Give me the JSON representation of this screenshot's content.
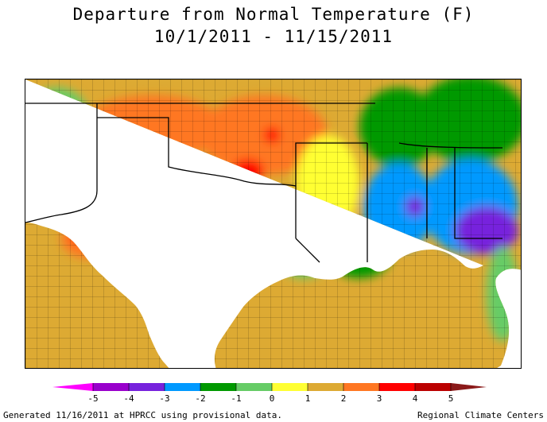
{
  "title_line1": "Departure from Normal Temperature (F)",
  "title_line2": "10/1/2011 - 11/15/2011",
  "legend": {
    "ticks": [
      "-5",
      "-4",
      "-3",
      "-2",
      "-1",
      "0",
      "1",
      "2",
      "3",
      "4",
      "5"
    ],
    "colors": [
      "#ff00ff",
      "#9900cc",
      "#7722dd",
      "#0099ff",
      "#009900",
      "#66cc66",
      "#ffff33",
      "#ddaa33",
      "#ff7722",
      "#ff0000",
      "#bb0000",
      "#8b1a1a"
    ]
  },
  "footer_left": "Generated 11/16/2011 at HPRCC using provisional data.",
  "footer_right": "Regional Climate Centers"
}
